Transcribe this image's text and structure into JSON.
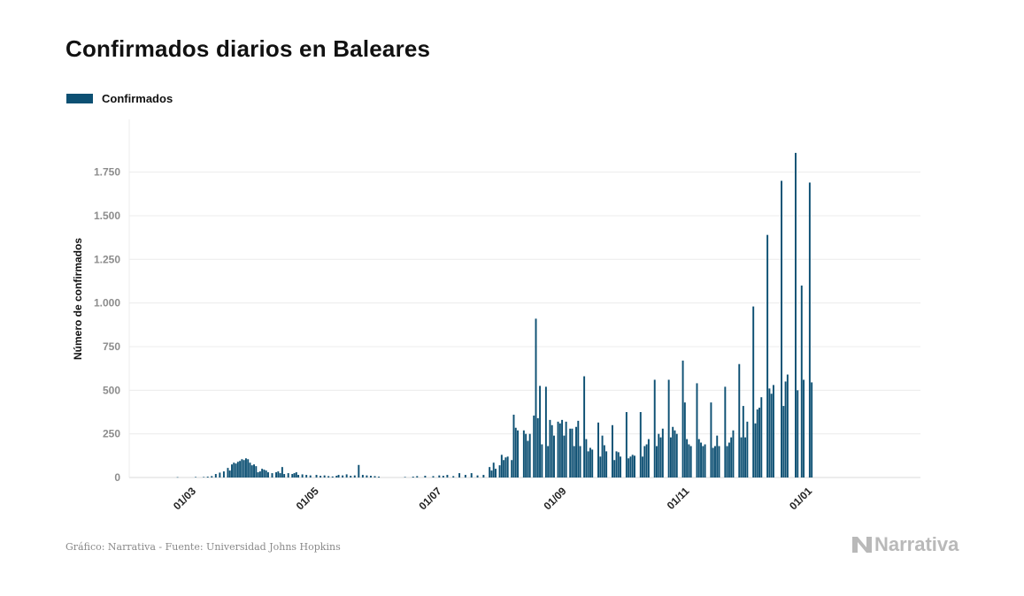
{
  "title": "Confirmados diarios en Baleares",
  "legend": {
    "label": "Confirmados",
    "color": "#0d5073"
  },
  "footer": "Gráfico: Narrativa - Fuente: Universidad Johns Hopkins",
  "brand": "Narrativa",
  "chart_data": {
    "type": "bar",
    "title": "Confirmados diarios en Baleares",
    "ylabel": "Número de confirmados",
    "xlabel": "",
    "ylim": [
      0,
      1900
    ],
    "y_ticks": [
      0,
      250,
      500,
      750,
      1000,
      1250,
      1500,
      1750
    ],
    "y_tick_labels": [
      "0",
      "250",
      "500",
      "750",
      "1.000",
      "1.250",
      "1.500",
      "1.750"
    ],
    "x_ticks": [
      "2020-03-01",
      "2020-05-01",
      "2020-07-01",
      "2020-09-01",
      "2020-11-01",
      "2021-01-01"
    ],
    "x_tick_labels": [
      "01/03",
      "01/05",
      "01/07",
      "01/09",
      "01/11",
      "01/01"
    ],
    "x_range": [
      "2020-02-01",
      "2021-02-28"
    ],
    "grid": true,
    "legend_position": "top-left",
    "series": [
      {
        "name": "Confirmados",
        "color": "#0d5073",
        "points": [
          [
            "2020-02-25",
            2
          ],
          [
            "2020-03-05",
            3
          ],
          [
            "2020-03-09",
            3
          ],
          [
            "2020-03-11",
            5
          ],
          [
            "2020-03-13",
            8
          ],
          [
            "2020-03-15",
            20
          ],
          [
            "2020-03-17",
            28
          ],
          [
            "2020-03-19",
            35
          ],
          [
            "2020-03-21",
            55
          ],
          [
            "2020-03-22",
            40
          ],
          [
            "2020-03-23",
            75
          ],
          [
            "2020-03-24",
            85
          ],
          [
            "2020-03-25",
            80
          ],
          [
            "2020-03-26",
            90
          ],
          [
            "2020-03-27",
            95
          ],
          [
            "2020-03-28",
            105
          ],
          [
            "2020-03-29",
            100
          ],
          [
            "2020-03-30",
            110
          ],
          [
            "2020-03-31",
            105
          ],
          [
            "2020-04-01",
            85
          ],
          [
            "2020-04-02",
            70
          ],
          [
            "2020-04-03",
            75
          ],
          [
            "2020-04-04",
            65
          ],
          [
            "2020-04-05",
            30
          ],
          [
            "2020-04-06",
            35
          ],
          [
            "2020-04-07",
            50
          ],
          [
            "2020-04-08",
            45
          ],
          [
            "2020-04-09",
            40
          ],
          [
            "2020-04-10",
            30
          ],
          [
            "2020-04-12",
            25
          ],
          [
            "2020-04-14",
            30
          ],
          [
            "2020-04-15",
            35
          ],
          [
            "2020-04-16",
            25
          ],
          [
            "2020-04-17",
            60
          ],
          [
            "2020-04-18",
            20
          ],
          [
            "2020-04-20",
            25
          ],
          [
            "2020-04-22",
            20
          ],
          [
            "2020-04-23",
            25
          ],
          [
            "2020-04-24",
            30
          ],
          [
            "2020-04-25",
            15
          ],
          [
            "2020-04-27",
            18
          ],
          [
            "2020-04-29",
            15
          ],
          [
            "2020-05-01",
            12
          ],
          [
            "2020-05-04",
            15
          ],
          [
            "2020-05-06",
            10
          ],
          [
            "2020-05-08",
            12
          ],
          [
            "2020-05-10",
            8
          ],
          [
            "2020-05-12",
            6
          ],
          [
            "2020-05-14",
            10
          ],
          [
            "2020-05-15",
            15
          ],
          [
            "2020-05-17",
            12
          ],
          [
            "2020-05-19",
            18
          ],
          [
            "2020-05-21",
            10
          ],
          [
            "2020-05-23",
            12
          ],
          [
            "2020-05-25",
            72
          ],
          [
            "2020-05-27",
            15
          ],
          [
            "2020-05-29",
            12
          ],
          [
            "2020-05-31",
            10
          ],
          [
            "2020-06-02",
            8
          ],
          [
            "2020-06-04",
            5
          ],
          [
            "2020-06-17",
            3
          ],
          [
            "2020-06-21",
            5
          ],
          [
            "2020-06-23",
            8
          ],
          [
            "2020-06-27",
            10
          ],
          [
            "2020-07-01",
            8
          ],
          [
            "2020-07-04",
            12
          ],
          [
            "2020-07-06",
            10
          ],
          [
            "2020-07-08",
            15
          ],
          [
            "2020-07-11",
            8
          ],
          [
            "2020-07-14",
            25
          ],
          [
            "2020-07-17",
            15
          ],
          [
            "2020-07-20",
            25
          ],
          [
            "2020-07-23",
            12
          ],
          [
            "2020-07-26",
            15
          ],
          [
            "2020-07-29",
            60
          ],
          [
            "2020-07-30",
            40
          ],
          [
            "2020-07-31",
            85
          ],
          [
            "2020-08-01",
            50
          ],
          [
            "2020-08-03",
            70
          ],
          [
            "2020-08-04",
            130
          ],
          [
            "2020-08-05",
            100
          ],
          [
            "2020-08-06",
            115
          ],
          [
            "2020-08-07",
            120
          ],
          [
            "2020-08-09",
            100
          ],
          [
            "2020-08-10",
            360
          ],
          [
            "2020-08-11",
            285
          ],
          [
            "2020-08-12",
            270
          ],
          [
            "2020-08-15",
            270
          ],
          [
            "2020-08-16",
            250
          ],
          [
            "2020-08-17",
            210
          ],
          [
            "2020-08-18",
            250
          ],
          [
            "2020-08-20",
            355
          ],
          [
            "2020-08-21",
            910
          ],
          [
            "2020-08-22",
            340
          ],
          [
            "2020-08-23",
            525
          ],
          [
            "2020-08-24",
            190
          ],
          [
            "2020-08-26",
            520
          ],
          [
            "2020-08-27",
            180
          ],
          [
            "2020-08-28",
            330
          ],
          [
            "2020-08-29",
            300
          ],
          [
            "2020-08-30",
            240
          ],
          [
            "2020-09-01",
            320
          ],
          [
            "2020-09-02",
            310
          ],
          [
            "2020-09-03",
            330
          ],
          [
            "2020-09-04",
            240
          ],
          [
            "2020-09-05",
            320
          ],
          [
            "2020-09-07",
            280
          ],
          [
            "2020-09-08",
            280
          ],
          [
            "2020-09-09",
            180
          ],
          [
            "2020-09-10",
            290
          ],
          [
            "2020-09-11",
            325
          ],
          [
            "2020-09-12",
            180
          ],
          [
            "2020-09-14",
            580
          ],
          [
            "2020-09-15",
            220
          ],
          [
            "2020-09-16",
            150
          ],
          [
            "2020-09-17",
            170
          ],
          [
            "2020-09-18",
            160
          ],
          [
            "2020-09-21",
            315
          ],
          [
            "2020-09-22",
            120
          ],
          [
            "2020-09-23",
            240
          ],
          [
            "2020-09-24",
            185
          ],
          [
            "2020-09-25",
            150
          ],
          [
            "2020-09-28",
            300
          ],
          [
            "2020-09-29",
            100
          ],
          [
            "2020-09-30",
            150
          ],
          [
            "2020-10-01",
            145
          ],
          [
            "2020-10-02",
            120
          ],
          [
            "2020-10-05",
            375
          ],
          [
            "2020-10-06",
            110
          ],
          [
            "2020-10-07",
            120
          ],
          [
            "2020-10-08",
            130
          ],
          [
            "2020-10-09",
            125
          ],
          [
            "2020-10-12",
            375
          ],
          [
            "2020-10-13",
            120
          ],
          [
            "2020-10-14",
            180
          ],
          [
            "2020-10-15",
            190
          ],
          [
            "2020-10-16",
            220
          ],
          [
            "2020-10-19",
            560
          ],
          [
            "2020-10-20",
            180
          ],
          [
            "2020-10-21",
            250
          ],
          [
            "2020-10-22",
            230
          ],
          [
            "2020-10-23",
            280
          ],
          [
            "2020-10-26",
            560
          ],
          [
            "2020-10-27",
            230
          ],
          [
            "2020-10-28",
            290
          ],
          [
            "2020-10-29",
            270
          ],
          [
            "2020-10-30",
            250
          ],
          [
            "2020-11-02",
            670
          ],
          [
            "2020-11-03",
            430
          ],
          [
            "2020-11-04",
            220
          ],
          [
            "2020-11-05",
            190
          ],
          [
            "2020-11-06",
            180
          ],
          [
            "2020-11-09",
            540
          ],
          [
            "2020-11-10",
            220
          ],
          [
            "2020-11-11",
            200
          ],
          [
            "2020-11-12",
            180
          ],
          [
            "2020-11-13",
            190
          ],
          [
            "2020-11-16",
            430
          ],
          [
            "2020-11-17",
            170
          ],
          [
            "2020-11-18",
            180
          ],
          [
            "2020-11-19",
            240
          ],
          [
            "2020-11-20",
            180
          ],
          [
            "2020-11-23",
            520
          ],
          [
            "2020-11-24",
            180
          ],
          [
            "2020-11-25",
            200
          ],
          [
            "2020-11-26",
            230
          ],
          [
            "2020-11-27",
            270
          ],
          [
            "2020-11-30",
            650
          ],
          [
            "2020-12-01",
            230
          ],
          [
            "2020-12-02",
            410
          ],
          [
            "2020-12-03",
            230
          ],
          [
            "2020-12-04",
            320
          ],
          [
            "2020-12-07",
            980
          ],
          [
            "2020-12-08",
            310
          ],
          [
            "2020-12-09",
            390
          ],
          [
            "2020-12-10",
            400
          ],
          [
            "2020-12-11",
            460
          ],
          [
            "2020-12-14",
            1390
          ],
          [
            "2020-12-15",
            510
          ],
          [
            "2020-12-16",
            480
          ],
          [
            "2020-12-17",
            530
          ],
          [
            "2020-12-21",
            1700
          ],
          [
            "2020-12-22",
            410
          ],
          [
            "2020-12-23",
            550
          ],
          [
            "2020-12-24",
            590
          ],
          [
            "2020-12-28",
            1860
          ],
          [
            "2020-12-29",
            500
          ],
          [
            "2020-12-31",
            1100
          ],
          [
            "2021-01-01",
            560
          ],
          [
            "2021-01-04",
            1690
          ],
          [
            "2021-01-05",
            545
          ]
        ]
      }
    ]
  }
}
